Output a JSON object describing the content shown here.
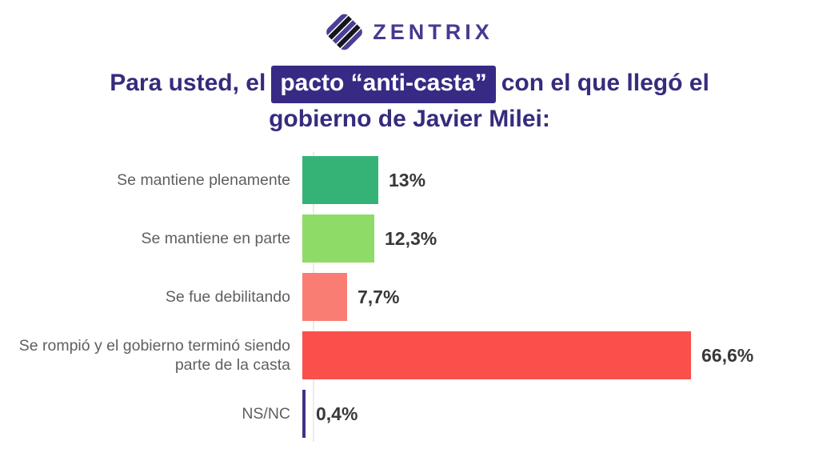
{
  "brand": {
    "name": "ZENTRIX",
    "logo_icon": "diamond-diagonal-stripes",
    "text_color": "#443b90",
    "icon_purple": "#4a3f97",
    "icon_black": "#17151c"
  },
  "title": {
    "prefix": "Para usted, el",
    "highlight": "pacto “anti-casta”",
    "suffix": "con el que llegó el",
    "line2": "gobierno de Javier Milei:",
    "text_color": "#352c7d",
    "highlight_bg": "#372a85",
    "highlight_text_color": "#ffffff"
  },
  "chart_data": {
    "type": "bar",
    "orientation": "horizontal",
    "title": "Para usted, el pacto “anti-casta” con el que llegó el gobierno de Javier Milei:",
    "categories": [
      "Se mantiene plenamente",
      "Se mantiene en parte",
      "Se fue debilitando",
      "Se rompió y el gobierno terminó siendo parte de la casta",
      "NS/NC"
    ],
    "values": [
      13,
      12.3,
      7.7,
      66.6,
      0.4
    ],
    "value_labels": [
      "13%",
      "12,3%",
      "7,7%",
      "66,6%",
      "0,4%"
    ],
    "bar_colors": [
      "#35b377",
      "#8edb68",
      "#f97d73",
      "#f9504c",
      "#3e3387"
    ],
    "xlim": [
      0,
      70
    ],
    "grid": false,
    "legend": false,
    "label_color": "#5f5f5f",
    "value_color": "#383838",
    "axis_color": "#ececec"
  }
}
